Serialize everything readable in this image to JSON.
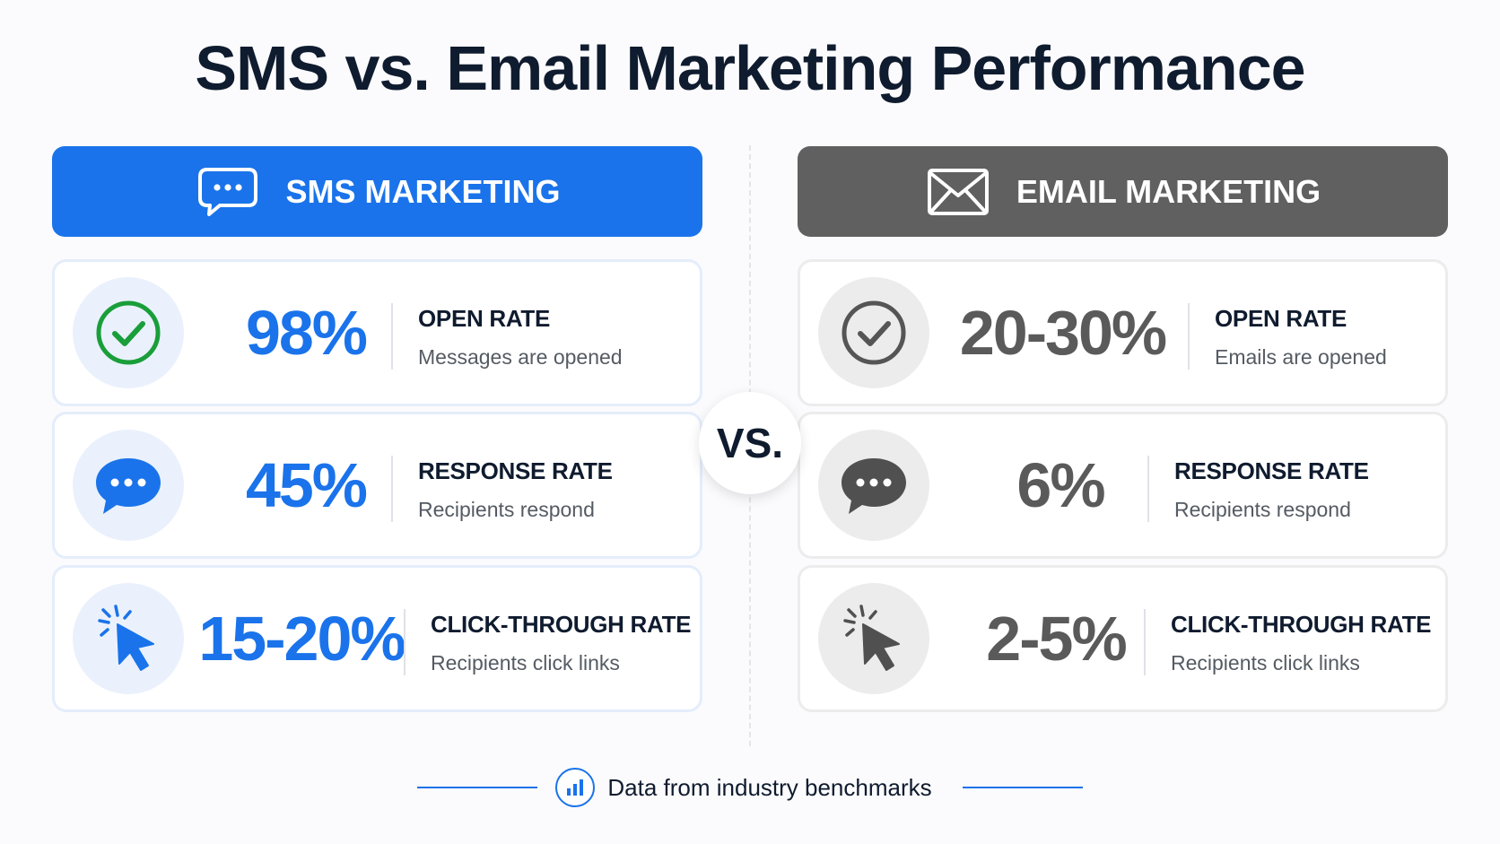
{
  "title": "SMS vs. Email Marketing Performance",
  "vs_label": "VS.",
  "colors": {
    "sms_accent": "#1a73ea",
    "email_accent": "#606060",
    "title": "#0f1b2e",
    "success_check": "#1a9e3a"
  },
  "sms": {
    "header": "SMS MARKETING",
    "header_icon": "chat-bubble-icon",
    "metrics": [
      {
        "icon": "check-circle-icon",
        "value": "98%",
        "label": "OPEN RATE",
        "desc": "Messages are opened"
      },
      {
        "icon": "chat-bubble-icon",
        "value": "45%",
        "label": "RESPONSE RATE",
        "desc": "Recipients respond"
      },
      {
        "icon": "cursor-click-icon",
        "value": "15-20%",
        "label": "CLICK-THROUGH RATE",
        "desc": "Recipients click links"
      }
    ]
  },
  "email": {
    "header": "EMAIL MARKETING",
    "header_icon": "envelope-icon",
    "metrics": [
      {
        "icon": "check-circle-icon",
        "value": "20-30%",
        "label": "OPEN RATE",
        "desc": "Emails are opened"
      },
      {
        "icon": "chat-bubble-icon",
        "value": "6%",
        "label": "RESPONSE RATE",
        "desc": "Recipients respond"
      },
      {
        "icon": "cursor-click-icon",
        "value": "2-5%",
        "label": "CLICK-THROUGH RATE",
        "desc": "Recipients click links"
      }
    ]
  },
  "footer": {
    "text": "Data from industry benchmarks",
    "icon": "bar-chart-icon"
  }
}
